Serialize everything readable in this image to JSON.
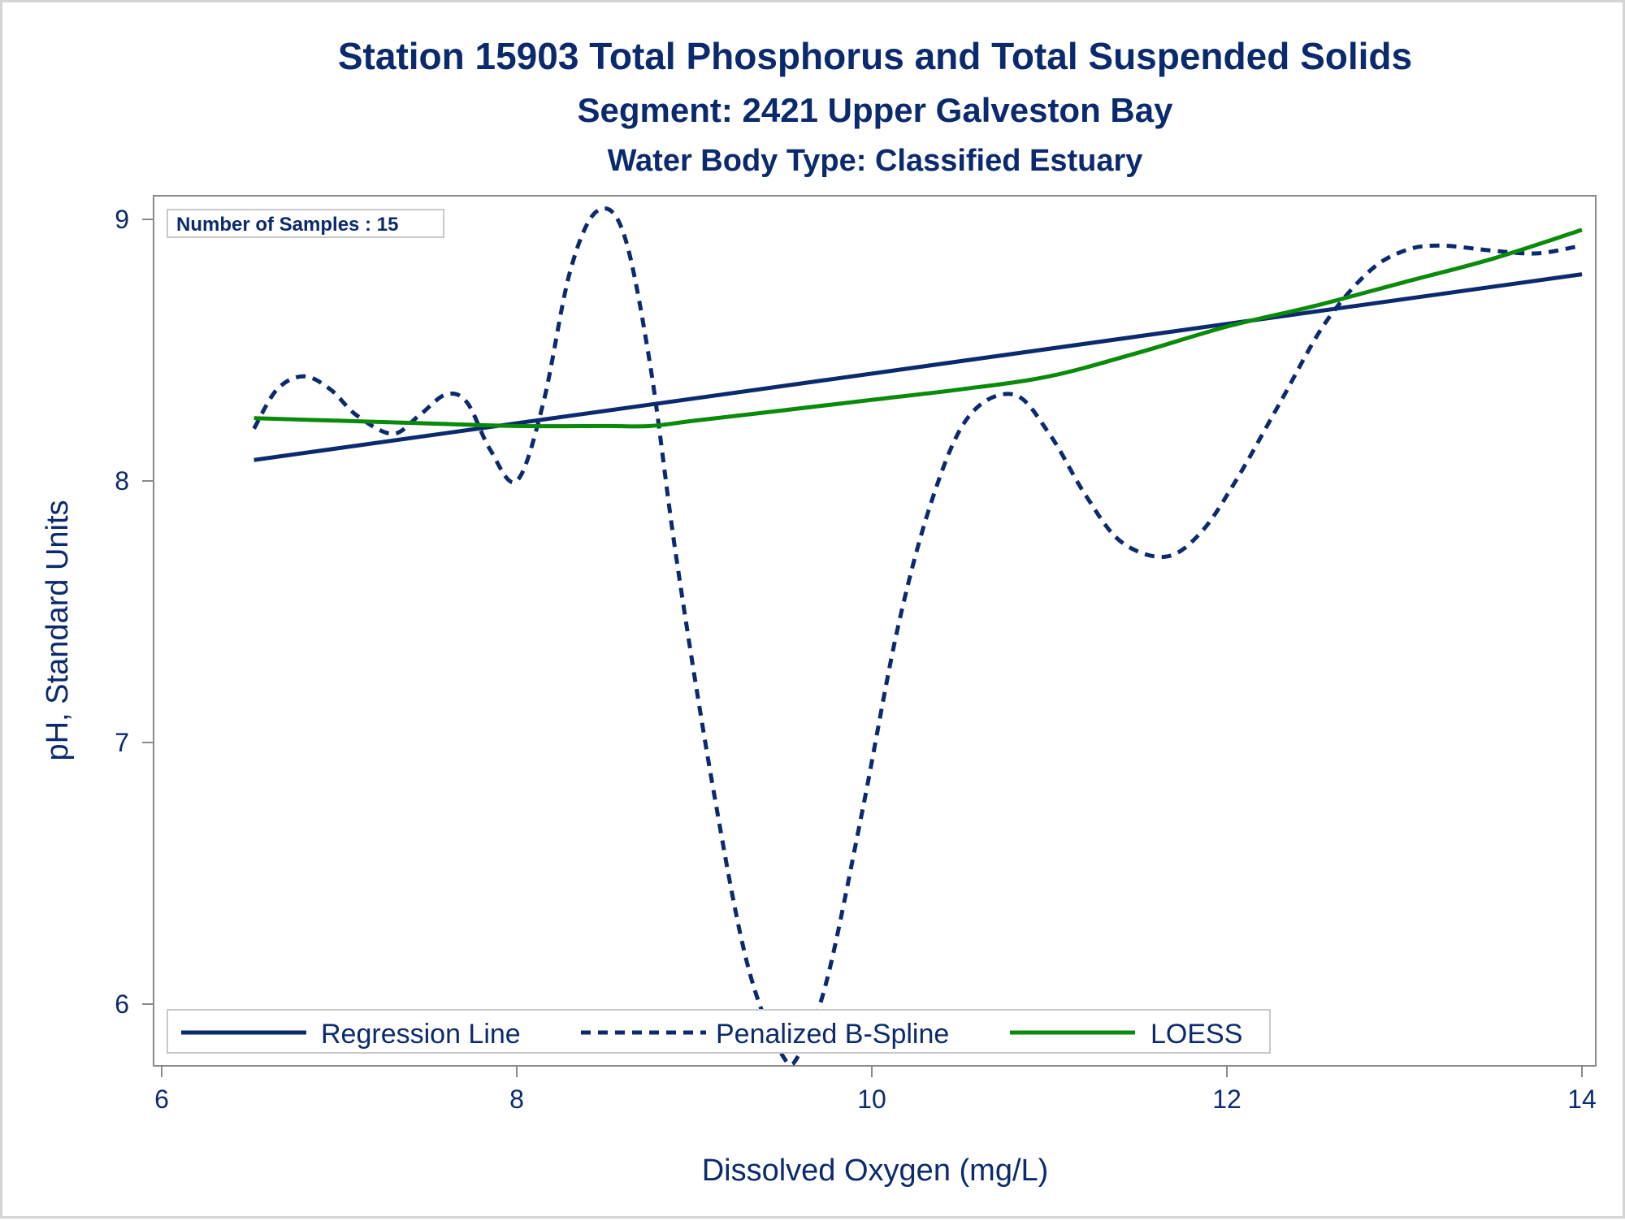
{
  "chart_data": {
    "type": "line",
    "title": "Station 15903  Total Phosphorus and Total Suspended Solids",
    "subtitle": "Segment: 2421  Upper Galveston Bay",
    "subtitle2": "Water Body Type: Classified Estuary",
    "xlabel": "Dissolved Oxygen (mg/L)",
    "ylabel": "pH, Standard Units",
    "xlim": [
      6,
      14
    ],
    "ylim": [
      5.8,
      9.1
    ],
    "x_ticks": [
      6,
      8,
      10,
      12,
      14
    ],
    "y_ticks": [
      6,
      7,
      8,
      9
    ],
    "annotation": "Number of Samples : 15",
    "legend_position": "bottom-inside",
    "grid": false,
    "series": [
      {
        "name": "Regression Line",
        "style": "solid",
        "color": "#0b2a6e",
        "x": [
          6.52,
          14.0
        ],
        "y": [
          8.08,
          8.79
        ]
      },
      {
        "name": "Penalized B-Spline",
        "style": "dashed",
        "color": "#0b2a6e",
        "x": [
          6.52,
          6.65,
          6.8,
          6.95,
          7.1,
          7.3,
          7.45,
          7.6,
          7.72,
          7.85,
          8.0,
          8.15,
          8.3,
          8.45,
          8.6,
          8.75,
          8.9,
          9.1,
          9.3,
          9.5,
          9.6,
          9.75,
          9.95,
          10.15,
          10.35,
          10.55,
          10.8,
          11.0,
          11.2,
          11.4,
          11.65,
          11.85,
          12.05,
          12.3,
          12.55,
          12.8,
          13.0,
          13.2,
          13.5,
          13.75,
          14.0
        ],
        "y": [
          8.2,
          8.35,
          8.4,
          8.35,
          8.25,
          8.18,
          8.25,
          8.33,
          8.3,
          8.12,
          8.0,
          8.3,
          8.8,
          9.03,
          8.95,
          8.45,
          7.7,
          6.85,
          6.15,
          5.8,
          5.82,
          6.1,
          6.75,
          7.45,
          7.95,
          8.25,
          8.33,
          8.18,
          7.95,
          7.77,
          7.71,
          7.8,
          8.0,
          8.3,
          8.6,
          8.8,
          8.88,
          8.9,
          8.88,
          8.87,
          8.9
        ]
      },
      {
        "name": "LOESS",
        "style": "solid",
        "color": "#0a8a0a",
        "x": [
          6.52,
          7.0,
          7.5,
          8.0,
          8.5,
          8.75,
          9.0,
          9.5,
          10.0,
          10.5,
          11.0,
          11.5,
          12.0,
          12.5,
          13.0,
          13.5,
          14.0
        ],
        "y": [
          8.24,
          8.23,
          8.22,
          8.21,
          8.21,
          8.21,
          8.23,
          8.27,
          8.31,
          8.35,
          8.4,
          8.49,
          8.59,
          8.67,
          8.76,
          8.85,
          8.96
        ]
      }
    ]
  }
}
